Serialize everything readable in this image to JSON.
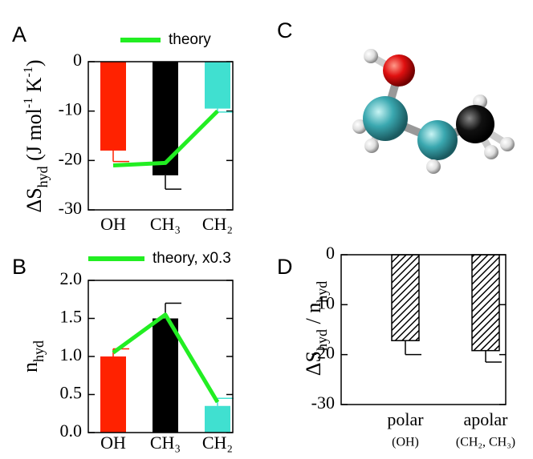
{
  "chart_data": [
    {
      "type": "bar",
      "panel": "A",
      "categories": [
        "OH",
        "CH₃",
        "CH₂"
      ],
      "values": [
        -18,
        -23,
        -9.5
      ],
      "errors": [
        2.2,
        2.8,
        0.7
      ],
      "colors": [
        "#ff2200",
        "#000000",
        "#40e0d0"
      ],
      "hatch": false,
      "series": [
        {
          "name": "theory",
          "color": "#22ee22",
          "values": [
            -21,
            -20.5,
            -10
          ]
        }
      ],
      "ylabel": [
        {
          "text": "ΔS"
        },
        {
          "text": "hyd",
          "sub": true
        },
        {
          "text": " (J mol"
        },
        {
          "text": "-1",
          "sup": true
        },
        {
          "text": " K"
        },
        {
          "text": "-1",
          "sup": true
        },
        {
          "text": ")"
        }
      ],
      "ylim": [
        -30,
        0
      ],
      "yticks": [
        -30,
        -20,
        -10,
        0
      ]
    },
    {
      "type": "bar",
      "panel": "B",
      "categories": [
        "OH",
        "CH₃",
        "CH₂"
      ],
      "values": [
        1.0,
        1.5,
        0.35
      ],
      "errors": [
        0.1,
        0.2,
        0.1
      ],
      "colors": [
        "#ff2200",
        "#000000",
        "#40e0d0"
      ],
      "hatch": false,
      "series": [
        {
          "name": "theory, x0.3",
          "color": "#22ee22",
          "values": [
            1.05,
            1.55,
            0.4
          ]
        }
      ],
      "ylabel": [
        {
          "text": "n"
        },
        {
          "text": "hyd",
          "sub": true
        }
      ],
      "ylim": [
        0,
        2
      ],
      "yticks": [
        {
          "value": 0,
          "label": "0.0"
        },
        0.5,
        {
          "value": 1,
          "label": "1.0"
        },
        1.5,
        {
          "value": 2,
          "label": "2.0"
        }
      ]
    },
    {
      "type": "bar",
      "panel": "D",
      "categories": [
        "polar",
        "apolar"
      ],
      "category_notes": [
        "(OH)",
        "(CH₂, CH₃)"
      ],
      "values": [
        -17.2,
        -19.2
      ],
      "errors": [
        2.8,
        2.3
      ],
      "colors": [
        "#000000",
        "#000000"
      ],
      "hatch": true,
      "ylabel": [
        {
          "text": "ΔS"
        },
        {
          "text": "hyd",
          "sub": true
        },
        {
          "text": " / n"
        },
        {
          "text": "hyd",
          "sub": true
        }
      ],
      "ylim": [
        -30,
        0
      ],
      "yticks": [
        -30,
        -20,
        -10,
        0
      ]
    }
  ],
  "molecule": {
    "panel": "C"
  }
}
